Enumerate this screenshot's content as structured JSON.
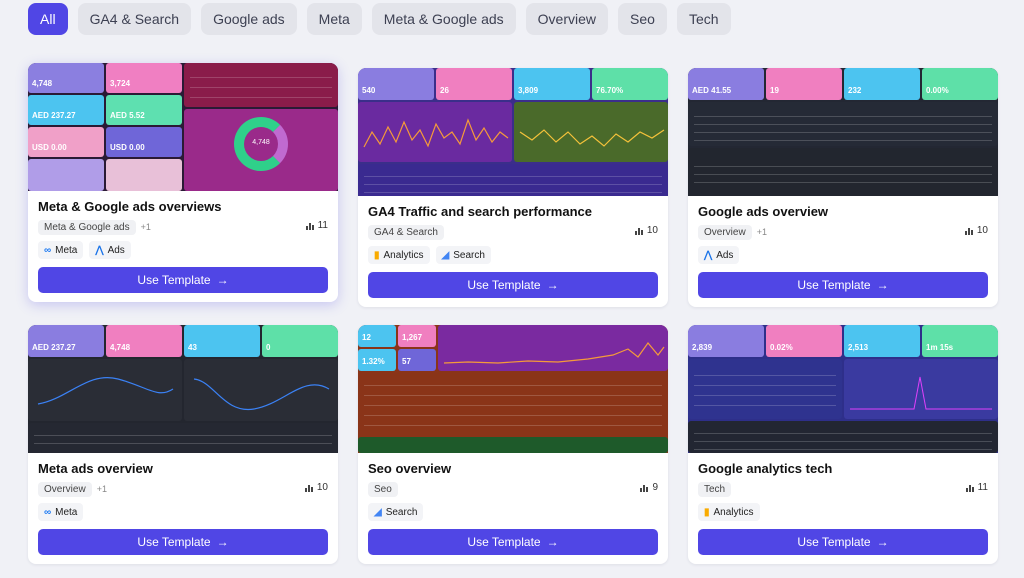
{
  "filters": [
    "All",
    "GA4 & Search",
    "Google ads",
    "Meta",
    "Meta & Google ads",
    "Overview",
    "Seo",
    "Tech"
  ],
  "use_label": "Use Template",
  "cards": [
    {
      "title": "Meta & Google ads overviews",
      "tag": "Meta & Google ads",
      "more": "+1",
      "uses": "11",
      "pills": [
        "Meta",
        "Ads"
      ],
      "thumb": {
        "kpis": [
          "4,748",
          "3,724",
          "AED 237.27",
          "AED 5.52",
          "USD 0.00",
          "USD 0.00"
        ],
        "donut": "4,748"
      }
    },
    {
      "title": "GA4 Traffic and search performance",
      "tag": "GA4 & Search",
      "more": "",
      "uses": "10",
      "pills": [
        "Analytics",
        "Search"
      ],
      "thumb": {
        "kpis": [
          "540",
          "26",
          "3,809",
          "76.70%"
        ]
      }
    },
    {
      "title": "Google ads overview",
      "tag": "Overview",
      "more": "+1",
      "uses": "10",
      "pills": [
        "Ads"
      ],
      "thumb": {
        "kpis": [
          "AED 41.55",
          "19",
          "232",
          "0.00%"
        ]
      }
    },
    {
      "title": "Meta ads overview",
      "tag": "Overview",
      "more": "+1",
      "uses": "10",
      "pills": [
        "Meta"
      ],
      "thumb": {
        "kpis": [
          "AED 237.27",
          "4,748",
          "43",
          "0"
        ]
      }
    },
    {
      "title": "Seo overview",
      "tag": "Seo",
      "more": "",
      "uses": "9",
      "pills": [
        "Search"
      ],
      "thumb": {
        "kpis": [
          "12",
          "1,267",
          "1.32%",
          "57"
        ]
      }
    },
    {
      "title": "Google analytics tech",
      "tag": "Tech",
      "more": "",
      "uses": "11",
      "pills": [
        "Analytics"
      ],
      "thumb": {
        "kpis": [
          "2,839",
          "0.02%",
          "2,513",
          "1m 15s"
        ]
      }
    }
  ]
}
